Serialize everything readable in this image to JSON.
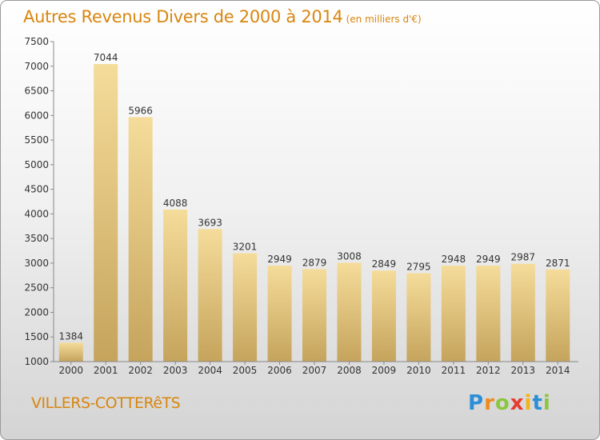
{
  "chart_data": {
    "type": "bar",
    "title": "Autres Revenus Divers de 2000 à 2014",
    "subtitle": "(en milliers d'€)",
    "categories": [
      "2000",
      "2001",
      "2002",
      "2003",
      "2004",
      "2005",
      "2006",
      "2007",
      "2008",
      "2009",
      "2010",
      "2011",
      "2012",
      "2013",
      "2014"
    ],
    "values": [
      1384,
      7044,
      5966,
      4088,
      3693,
      3201,
      2949,
      2879,
      3008,
      2849,
      2795,
      2948,
      2949,
      2987,
      2871
    ],
    "ylim": [
      1000,
      7500
    ],
    "yticks": [
      1000,
      1500,
      2000,
      2500,
      3000,
      3500,
      4000,
      4500,
      5000,
      5500,
      6000,
      6500,
      7000,
      7500
    ],
    "grid": false,
    "bar_color_light": "#f5dc9a",
    "bar_color_dark": "#c5a45c",
    "text_color": "#333333"
  },
  "place_name": "VILLERS-COTTERêTS",
  "logo": {
    "letters": [
      "P",
      "r",
      "o",
      "x",
      "i",
      "t",
      "i"
    ],
    "colors": [
      "#2a8fd8",
      "#ef8a1c",
      "#8cc63f",
      "#e63b2e",
      "#f2b316",
      "#2a8fd8",
      "#8cc63f"
    ]
  },
  "accent_color": "#d8860f"
}
